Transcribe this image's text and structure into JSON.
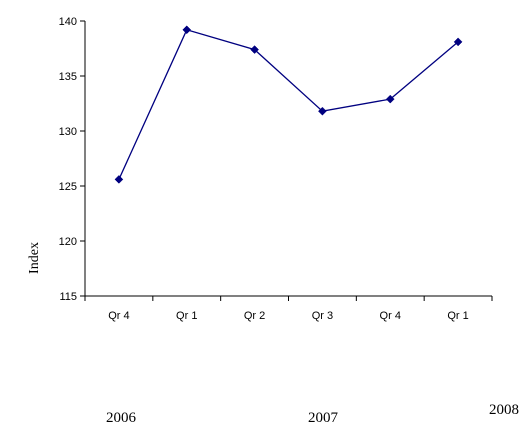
{
  "chart_data": {
    "type": "line",
    "categories": [
      "Qr 4",
      "Qr 1",
      "Qr 2",
      "Qr 3",
      "Qr 4",
      "Qr 1"
    ],
    "series": [
      {
        "values": [
          125.6,
          139.2,
          137.4,
          131.8,
          132.9,
          138.1
        ],
        "color": "#000080"
      }
    ],
    "ylabel": "Index",
    "ylim": [
      115,
      140
    ],
    "yticks": [
      "115",
      "120",
      "125",
      "130",
      "135",
      "140"
    ],
    "years": [
      "2006",
      "2007",
      "2008"
    ],
    "grid": false,
    "marker": "diamond"
  }
}
